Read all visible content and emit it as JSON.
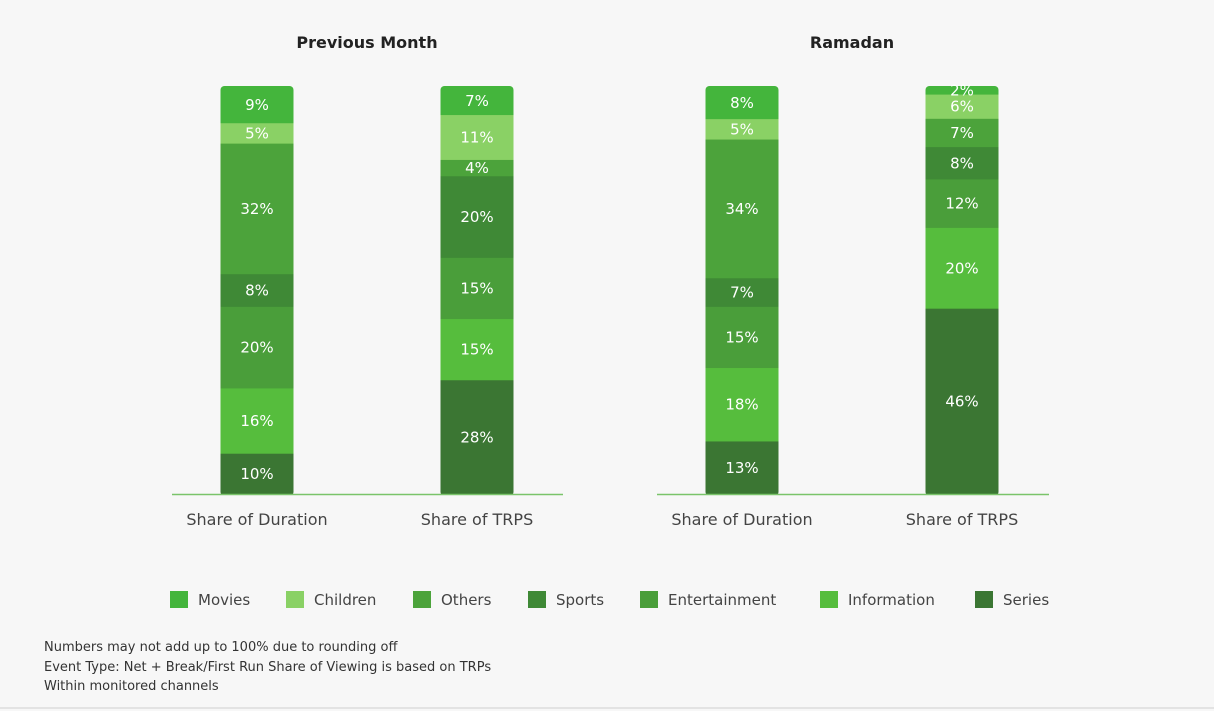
{
  "colors": {
    "Movies": "#44b53c",
    "Children": "#8ad165",
    "Others": "#4ca33b",
    "Sports": "#3f8936",
    "Entertainment": "#4a9e3a",
    "Information": "#56bd3d",
    "Series": "#3b7633",
    "axis": "#7ac46a"
  },
  "chart_data": [
    {
      "type": "bar",
      "stacked": true,
      "title": "Previous Month",
      "categories": [
        "Share of Duration",
        "Share of TRPS"
      ],
      "series": [
        {
          "name": "Series",
          "values": [
            10,
            28
          ]
        },
        {
          "name": "Information",
          "values": [
            16,
            15
          ]
        },
        {
          "name": "Entertainment",
          "values": [
            20,
            15
          ]
        },
        {
          "name": "Sports",
          "values": [
            8,
            20
          ]
        },
        {
          "name": "Others",
          "values": [
            32,
            4
          ]
        },
        {
          "name": "Children",
          "values": [
            5,
            11
          ]
        },
        {
          "name": "Movies",
          "values": [
            9,
            7
          ]
        }
      ],
      "labels": [
        [
          "10%",
          "16%",
          "20%",
          "8%",
          "32%",
          "5%",
          "9%"
        ],
        [
          "28%",
          "15%",
          "15%",
          "20%",
          "4%",
          "11%",
          "7%"
        ]
      ],
      "ylim": [
        0,
        100
      ]
    },
    {
      "type": "bar",
      "stacked": true,
      "title": "Ramadan",
      "categories": [
        "Share of Duration",
        "Share of TRPS"
      ],
      "series": [
        {
          "name": "Series",
          "values": [
            13,
            46
          ]
        },
        {
          "name": "Information",
          "values": [
            18,
            20
          ]
        },
        {
          "name": "Entertainment",
          "values": [
            15,
            12
          ]
        },
        {
          "name": "Sports",
          "values": [
            7,
            8
          ]
        },
        {
          "name": "Others",
          "values": [
            34,
            7
          ]
        },
        {
          "name": "Children",
          "values": [
            5,
            6
          ]
        },
        {
          "name": "Movies",
          "values": [
            8,
            2
          ]
        }
      ],
      "labels": [
        [
          "13%",
          "18%",
          "15%",
          "7%",
          "34%",
          "5%",
          "8%"
        ],
        [
          "46%",
          "20%",
          "12%",
          "8%",
          "7%",
          "6%",
          "2%"
        ]
      ],
      "ylim": [
        0,
        100
      ]
    }
  ],
  "legend": [
    "Movies",
    "Children",
    "Others",
    "Sports",
    "Entertainment",
    "Information",
    "Series"
  ],
  "notes": [
    "Numbers may not add up to 100% due to rounding off",
    "Event Type: Net + Break/First Run Share of Viewing is based on TRPs",
    "Within monitored channels"
  ]
}
